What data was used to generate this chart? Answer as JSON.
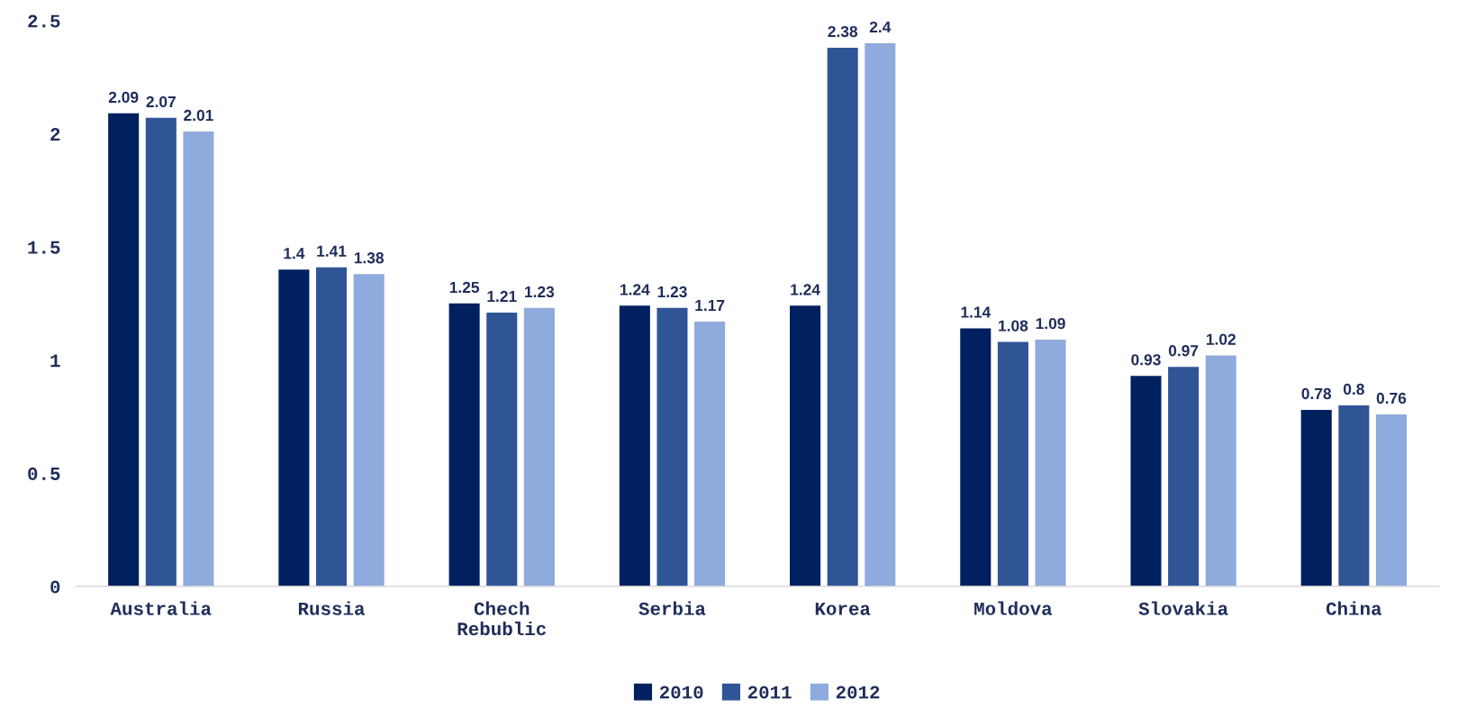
{
  "chart_data": {
    "type": "bar",
    "categories": [
      "Australia",
      "Russia",
      "Chech\nRebublic",
      "Serbia",
      "Korea",
      "Moldova",
      "Slovakia",
      "China"
    ],
    "series": [
      {
        "name": "2010",
        "color": "#002060",
        "values": [
          2.09,
          1.4,
          1.25,
          1.24,
          1.24,
          1.14,
          0.93,
          0.78
        ]
      },
      {
        "name": "2011",
        "color": "#2f5597",
        "values": [
          2.07,
          1.41,
          1.21,
          1.23,
          2.38,
          1.08,
          0.97,
          0.8
        ]
      },
      {
        "name": "2012",
        "color": "#8faadc",
        "values": [
          2.01,
          1.38,
          1.23,
          1.17,
          2.4,
          1.09,
          1.02,
          0.76
        ]
      }
    ],
    "ylim": [
      0,
      2.5
    ],
    "yticks": [
      0,
      0.5,
      1,
      1.5,
      2,
      2.5
    ],
    "data_labels": true,
    "legend": "bottom",
    "grid": false
  }
}
